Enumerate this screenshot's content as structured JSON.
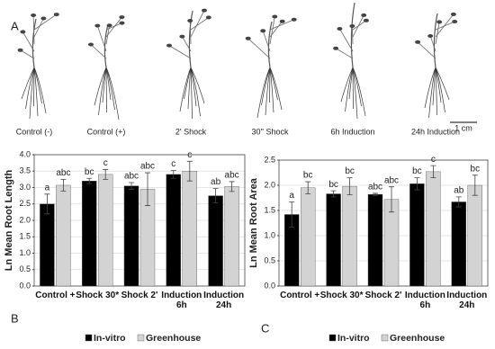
{
  "panel_a": {
    "label": "A",
    "captions": [
      "Control (-)",
      "Control (+)",
      "2' Shock",
      "30'' Shock",
      "6h Induction",
      "24h Induction"
    ],
    "scale_bar": "1 cm"
  },
  "chart_data": [
    {
      "type": "bar",
      "panel": "B",
      "ylabel": "Ln Mean Root Length",
      "categories": [
        "Control +",
        "Shock 30*",
        "Shock 2'",
        "Induction 6h",
        "Induction 24h"
      ],
      "series": [
        {
          "name": "In-vitro",
          "color": "#000000",
          "values": [
            2.5,
            3.2,
            3.05,
            3.4,
            2.75
          ],
          "errors": [
            0.3,
            0.08,
            0.1,
            0.12,
            0.22
          ],
          "letters": [
            "a",
            "bc",
            "abc",
            "c",
            "ab"
          ]
        },
        {
          "name": "Greenhouse",
          "color": "#d3d3d3",
          "values": [
            3.07,
            3.4,
            2.95,
            3.5,
            3.03
          ],
          "errors": [
            0.18,
            0.15,
            0.5,
            0.3,
            0.15
          ],
          "letters": [
            "abc",
            "c",
            "abc",
            "c",
            "abc"
          ]
        }
      ],
      "ylim": [
        0,
        4
      ],
      "yticks": [
        {
          "value": 0,
          "label": "0.0"
        },
        0.5,
        {
          "value": 1,
          "label": "1.0"
        },
        1.5,
        {
          "value": 2,
          "label": "2.0"
        },
        2.5,
        {
          "value": 3,
          "label": "3.0"
        },
        3.5,
        {
          "value": 4,
          "label": "4.0"
        }
      ],
      "grid": true,
      "legend": "bottom"
    },
    {
      "type": "bar",
      "panel": "C",
      "ylabel": "Ln Mean Root Area",
      "categories": [
        "Control +",
        "Shock 30*",
        "Shock 2'",
        "Induction 6h",
        "Induction 24h"
      ],
      "series": [
        {
          "name": "In-vitro",
          "color": "#000000",
          "values": [
            1.42,
            1.83,
            1.82,
            2.03,
            1.67
          ],
          "errors": [
            0.25,
            0.06,
            0.02,
            0.12,
            0.1
          ],
          "letters": [
            "a",
            "bc",
            "abc",
            "bc",
            "ab"
          ]
        },
        {
          "name": "Greenhouse",
          "color": "#d3d3d3",
          "values": [
            1.95,
            1.98,
            1.72,
            2.27,
            2.0
          ],
          "errors": [
            0.12,
            0.17,
            0.25,
            0.12,
            0.2
          ],
          "letters": [
            "bc",
            "bc",
            "abc",
            "c",
            "bc"
          ]
        }
      ],
      "ylim": [
        0,
        2.5
      ],
      "yticks": [
        {
          "value": 0,
          "label": "0.0"
        },
        0.5,
        {
          "value": 1,
          "label": "1.0"
        },
        1.5,
        {
          "value": 2,
          "label": "2.0"
        },
        2.5
      ],
      "grid": true,
      "legend": "bottom"
    }
  ]
}
